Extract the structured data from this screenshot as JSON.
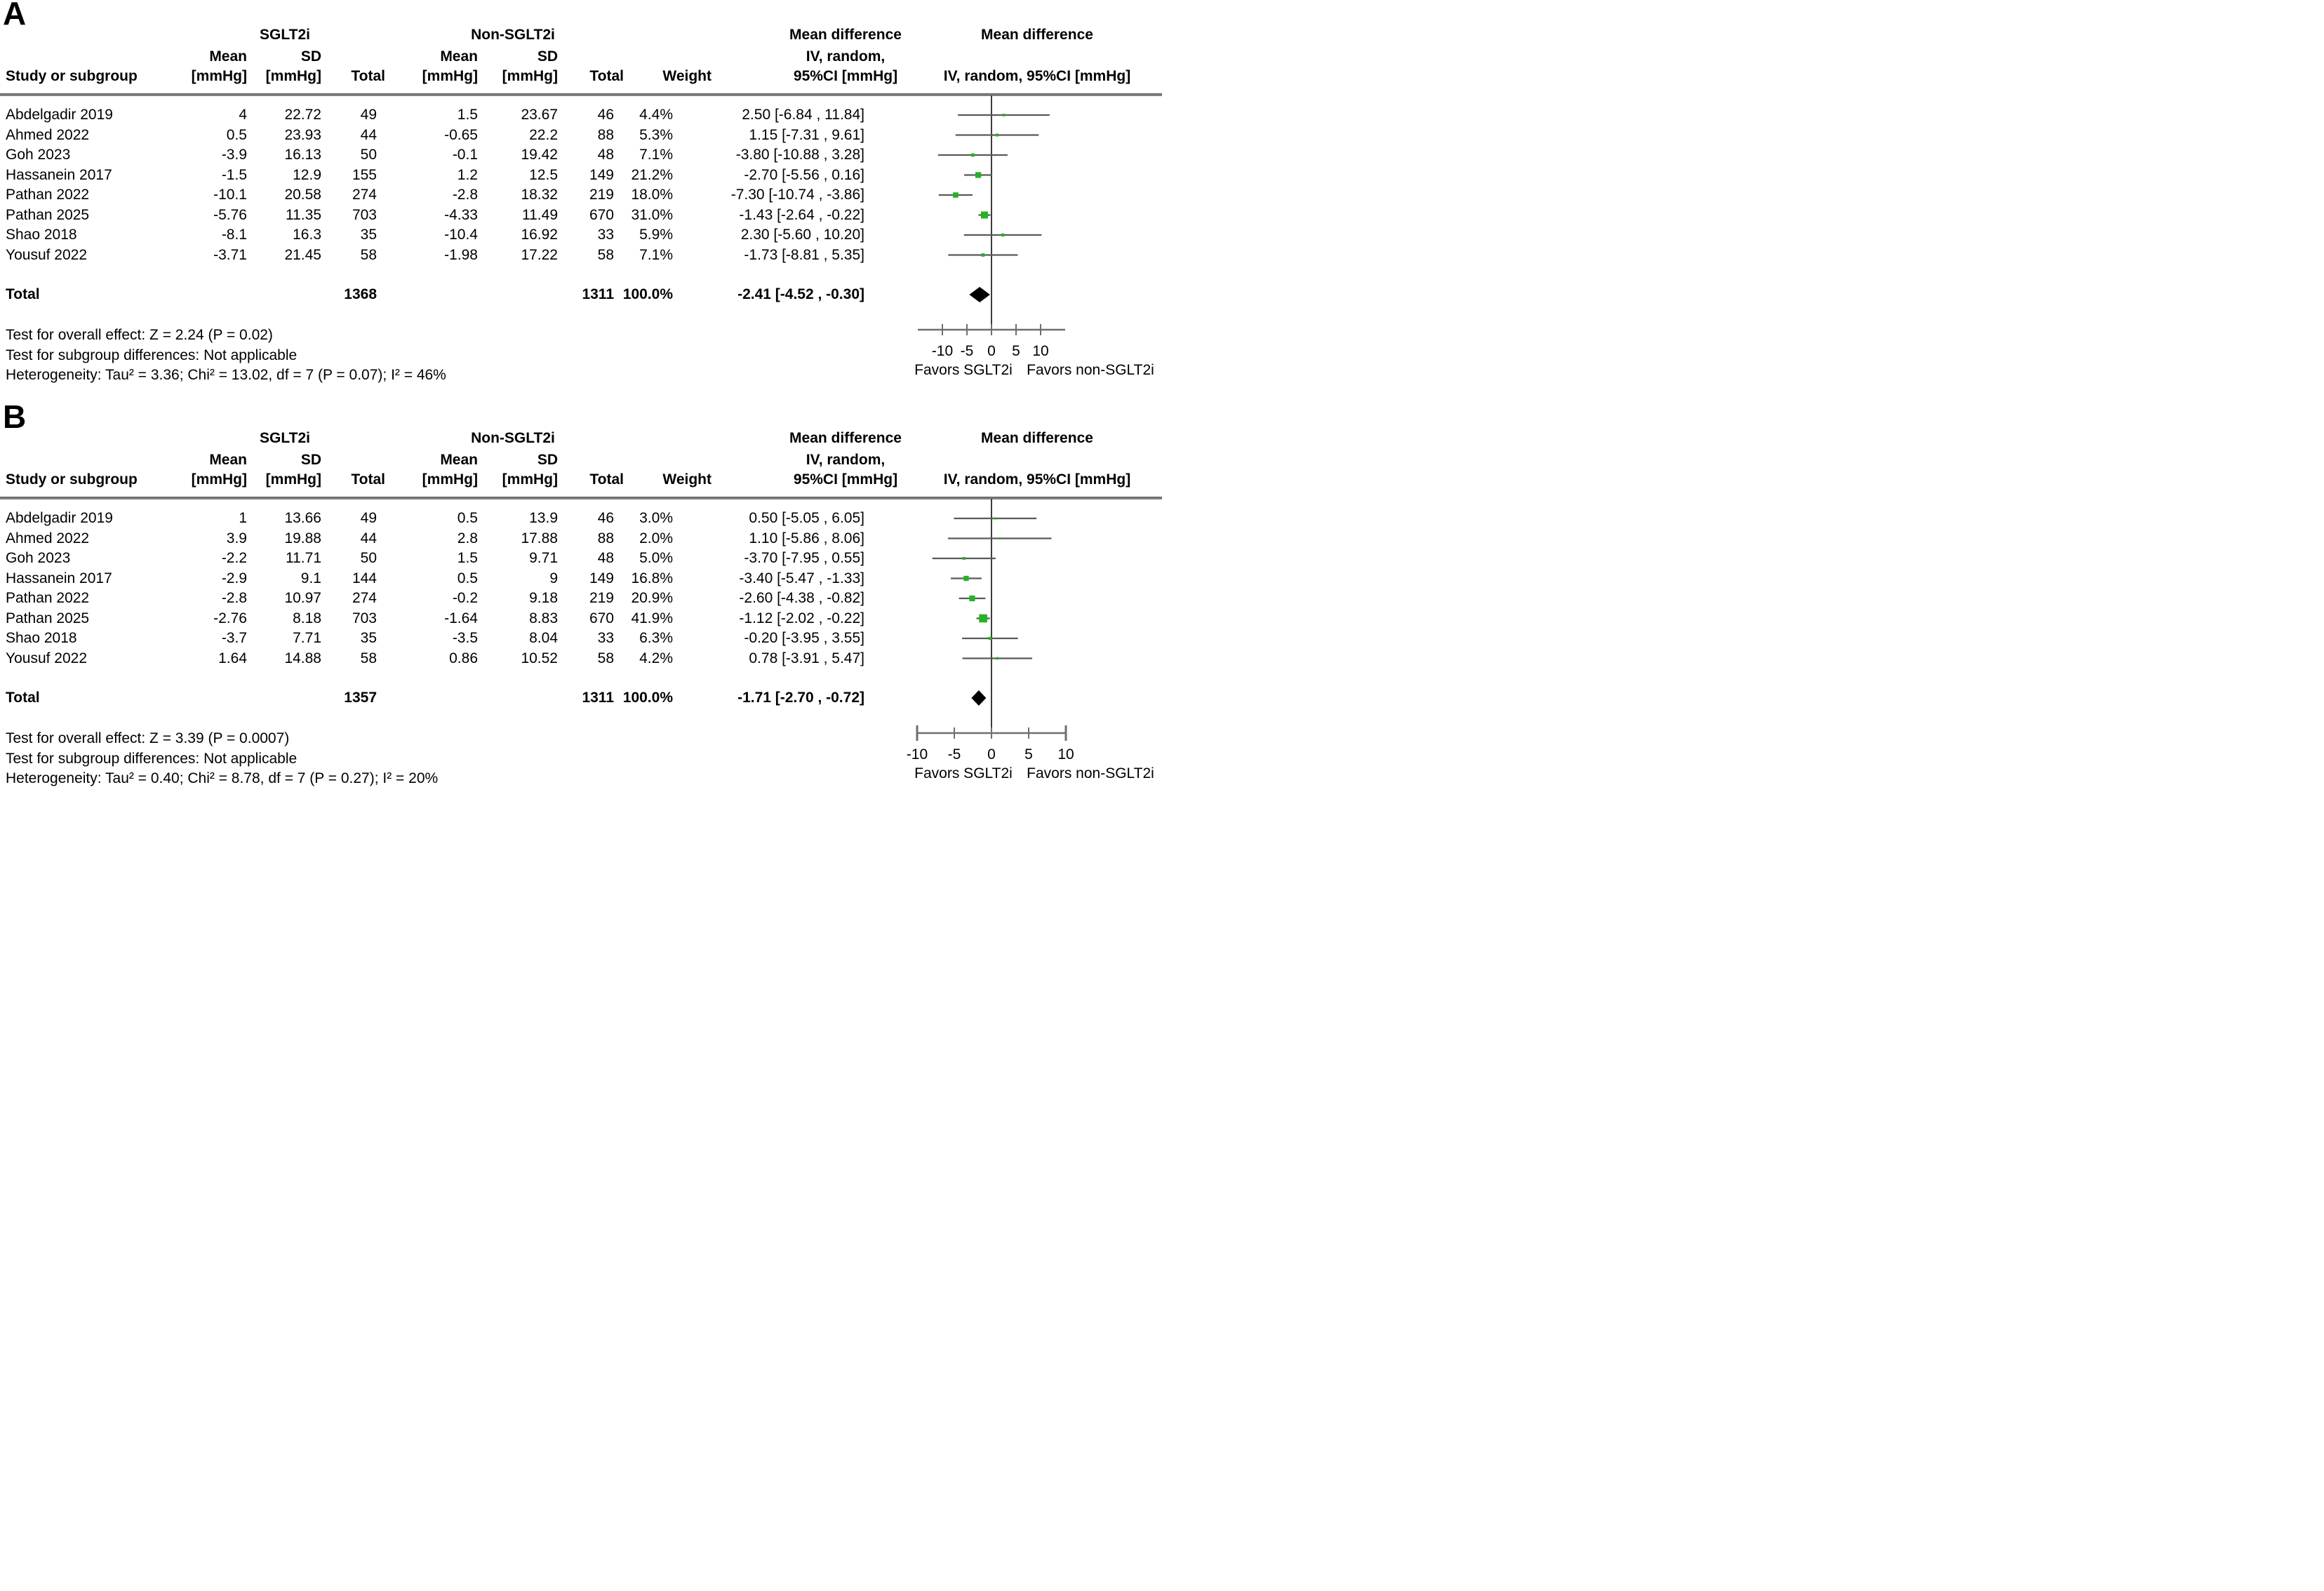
{
  "colors": {
    "marker_green": "#26b226",
    "diamond_black": "#000000",
    "ci_line": "#595959",
    "axis_line": "#6e6e6e",
    "zero_line": "#3c3c3c",
    "header_rule": "#7e7e7e"
  },
  "panels": [
    {
      "label": "A",
      "headers": {
        "study": "Study or subgroup",
        "group1": "SGLT2i",
        "group2": "Non-SGLT2i",
        "mean": "Mean",
        "mean_unit": "[mmHg]",
        "sd": "SD",
        "sd_unit": "[mmHg]",
        "total": "Total",
        "weight": "Weight",
        "md_line1": "Mean difference",
        "md_line2": "IV, random,",
        "md_line3": "95%CI [mmHg]",
        "plot_line1": "Mean difference",
        "plot_line2": "IV, random, 95%CI [mmHg]"
      },
      "total_label": "Total",
      "footer": [
        "Test for overall effect: Z = 2.24 (P = 0.02)",
        "Test for subgroup differences: Not applicable",
        "Heterogeneity: Tau² = 3.36; Chi² = 13.02, df = 7 (P = 0.07); I² = 46%"
      ],
      "favors_left": "Favors SGLT2i",
      "favors_right": "Favors non-SGLT2i"
    },
    {
      "label": "B",
      "headers": {
        "study": "Study or subgroup",
        "group1": "SGLT2i",
        "group2": "Non-SGLT2i",
        "mean": "Mean",
        "mean_unit": "[mmHg]",
        "sd": "SD",
        "sd_unit": "[mmHg]",
        "total": "Total",
        "weight": "Weight",
        "md_line1": "Mean difference",
        "md_line2": "IV, random,",
        "md_line3": "95%CI [mmHg]",
        "plot_line1": "Mean difference",
        "plot_line2": "IV, random, 95%CI [mmHg]"
      },
      "total_label": "Total",
      "footer": [
        "Test for overall effect: Z = 3.39 (P = 0.0007)",
        "Test for subgroup differences: Not applicable",
        "Heterogeneity: Tau² = 0.40; Chi² = 8.78, df = 7 (P = 0.27); I² = 20%"
      ],
      "favors_left": "Favors SGLT2i",
      "favors_right": "Favors non-SGLT2i"
    }
  ],
  "chart_data": [
    {
      "type": "scatter",
      "subtype": "forest-plot",
      "panel": "A",
      "title": "Mean difference IV, random, 95%CI [mmHg]",
      "xticks": [
        -10,
        -5,
        0,
        5,
        10
      ],
      "xlim": [
        -15,
        15
      ],
      "axis_end_caps": false,
      "zero_line": 0,
      "legend_left": "Favors SGLT2i",
      "legend_right": "Favors non-SGLT2i",
      "studies": [
        {
          "name": "Abdelgadir 2019",
          "mean1": 4,
          "sd1": 22.72,
          "n1": 49,
          "mean2": 1.5,
          "sd2": 23.67,
          "n2": 46,
          "weight": 4.4,
          "weight_text": "4.4%",
          "md": 2.5,
          "ci": [
            -6.84,
            11.84
          ],
          "md_text": "2.50 [-6.84 , 11.84]"
        },
        {
          "name": "Ahmed 2022",
          "mean1": 0.5,
          "sd1": 23.93,
          "n1": 44,
          "mean2": -0.65,
          "sd2": 22.2,
          "n2": 88,
          "weight": 5.3,
          "weight_text": "5.3%",
          "md": 1.15,
          "ci": [
            -7.31,
            9.61
          ],
          "md_text": "1.15 [-7.31 , 9.61]"
        },
        {
          "name": "Goh 2023",
          "mean1": -3.9,
          "sd1": 16.13,
          "n1": 50,
          "mean2": -0.1,
          "sd2": 19.42,
          "n2": 48,
          "weight": 7.1,
          "weight_text": "7.1%",
          "md": -3.8,
          "ci": [
            -10.88,
            3.28
          ],
          "md_text": "-3.80 [-10.88 , 3.28]"
        },
        {
          "name": "Hassanein 2017",
          "mean1": -1.5,
          "sd1": 12.9,
          "n1": 155,
          "mean2": 1.2,
          "sd2": 12.5,
          "n2": 149,
          "weight": 21.2,
          "weight_text": "21.2%",
          "md": -2.7,
          "ci": [
            -5.56,
            0.16
          ],
          "md_text": "-2.70 [-5.56 , 0.16]"
        },
        {
          "name": "Pathan 2022",
          "mean1": -10.1,
          "sd1": 20.58,
          "n1": 274,
          "mean2": -2.8,
          "sd2": 18.32,
          "n2": 219,
          "weight": 18.0,
          "weight_text": "18.0%",
          "md": -7.3,
          "ci": [
            -10.74,
            -3.86
          ],
          "md_text": "-7.30 [-10.74 , -3.86]"
        },
        {
          "name": "Pathan 2025",
          "mean1": -5.76,
          "sd1": 11.35,
          "n1": 703,
          "mean2": -4.33,
          "sd2": 11.49,
          "n2": 670,
          "weight": 31.0,
          "weight_text": "31.0%",
          "md": -1.43,
          "ci": [
            -2.64,
            -0.22
          ],
          "md_text": "-1.43 [-2.64 , -0.22]"
        },
        {
          "name": "Shao 2018",
          "mean1": -8.1,
          "sd1": 16.3,
          "n1": 35,
          "mean2": -10.4,
          "sd2": 16.92,
          "n2": 33,
          "weight": 5.9,
          "weight_text": "5.9%",
          "md": 2.3,
          "ci": [
            -5.6,
            10.2
          ],
          "md_text": "2.30 [-5.60 , 10.20]"
        },
        {
          "name": "Yousuf 2022",
          "mean1": -3.71,
          "sd1": 21.45,
          "n1": 58,
          "mean2": -1.98,
          "sd2": 17.22,
          "n2": 58,
          "weight": 7.1,
          "weight_text": "7.1%",
          "md": -1.73,
          "ci": [
            -8.81,
            5.35
          ],
          "md_text": "-1.73 [-8.81 , 5.35]"
        }
      ],
      "total": {
        "n1": 1368,
        "n2": 1311,
        "weight": 100.0,
        "weight_text": "100.0%",
        "md": -2.41,
        "ci": [
          -4.52,
          -0.3
        ],
        "md_text": "-2.41 [-4.52 , -0.30]"
      }
    },
    {
      "type": "scatter",
      "subtype": "forest-plot",
      "panel": "B",
      "title": "Mean difference IV, random, 95%CI [mmHg]",
      "xticks": [
        -10,
        -5,
        0,
        5,
        10
      ],
      "xlim": [
        -10,
        10
      ],
      "axis_end_caps": true,
      "zero_line": 0,
      "legend_left": "Favors SGLT2i",
      "legend_right": "Favors non-SGLT2i",
      "studies": [
        {
          "name": "Abdelgadir 2019",
          "mean1": 1,
          "sd1": 13.66,
          "n1": 49,
          "mean2": 0.5,
          "sd2": 13.9,
          "n2": 46,
          "weight": 3.0,
          "weight_text": "3.0%",
          "md": 0.5,
          "ci": [
            -5.05,
            6.05
          ],
          "md_text": "0.50 [-5.05 , 6.05]"
        },
        {
          "name": "Ahmed 2022",
          "mean1": 3.9,
          "sd1": 19.88,
          "n1": 44,
          "mean2": 2.8,
          "sd2": 17.88,
          "n2": 88,
          "weight": 2.0,
          "weight_text": "2.0%",
          "md": 1.1,
          "ci": [
            -5.86,
            8.06
          ],
          "md_text": "1.10 [-5.86 , 8.06]"
        },
        {
          "name": "Goh 2023",
          "mean1": -2.2,
          "sd1": 11.71,
          "n1": 50,
          "mean2": 1.5,
          "sd2": 9.71,
          "n2": 48,
          "weight": 5.0,
          "weight_text": "5.0%",
          "md": -3.7,
          "ci": [
            -7.95,
            0.55
          ],
          "md_text": "-3.70 [-7.95 , 0.55]"
        },
        {
          "name": "Hassanein 2017",
          "mean1": -2.9,
          "sd1": 9.1,
          "n1": 144,
          "mean2": 0.5,
          "sd2": 9,
          "n2": 149,
          "weight": 16.8,
          "weight_text": "16.8%",
          "md": -3.4,
          "ci": [
            -5.47,
            -1.33
          ],
          "md_text": "-3.40 [-5.47 , -1.33]"
        },
        {
          "name": "Pathan 2022",
          "mean1": -2.8,
          "sd1": 10.97,
          "n1": 274,
          "mean2": -0.2,
          "sd2": 9.18,
          "n2": 219,
          "weight": 20.9,
          "weight_text": "20.9%",
          "md": -2.6,
          "ci": [
            -4.38,
            -0.82
          ],
          "md_text": "-2.60 [-4.38 , -0.82]"
        },
        {
          "name": "Pathan 2025",
          "mean1": -2.76,
          "sd1": 8.18,
          "n1": 703,
          "mean2": -1.64,
          "sd2": 8.83,
          "n2": 670,
          "weight": 41.9,
          "weight_text": "41.9%",
          "md": -1.12,
          "ci": [
            -2.02,
            -0.22
          ],
          "md_text": "-1.12 [-2.02 , -0.22]"
        },
        {
          "name": "Shao 2018",
          "mean1": -3.7,
          "sd1": 7.71,
          "n1": 35,
          "mean2": -3.5,
          "sd2": 8.04,
          "n2": 33,
          "weight": 6.3,
          "weight_text": "6.3%",
          "md": -0.2,
          "ci": [
            -3.95,
            3.55
          ],
          "md_text": "-0.20 [-3.95 , 3.55]"
        },
        {
          "name": "Yousuf 2022",
          "mean1": 1.64,
          "sd1": 14.88,
          "n1": 58,
          "mean2": 0.86,
          "sd2": 10.52,
          "n2": 58,
          "weight": 4.2,
          "weight_text": "4.2%",
          "md": 0.78,
          "ci": [
            -3.91,
            5.47
          ],
          "md_text": "0.78 [-3.91 , 5.47]"
        }
      ],
      "total": {
        "n1": 1357,
        "n2": 1311,
        "weight": 100.0,
        "weight_text": "100.0%",
        "md": -1.71,
        "ci": [
          -2.7,
          -0.72
        ],
        "md_text": "-1.71 [-2.70 , -0.72]"
      }
    }
  ]
}
